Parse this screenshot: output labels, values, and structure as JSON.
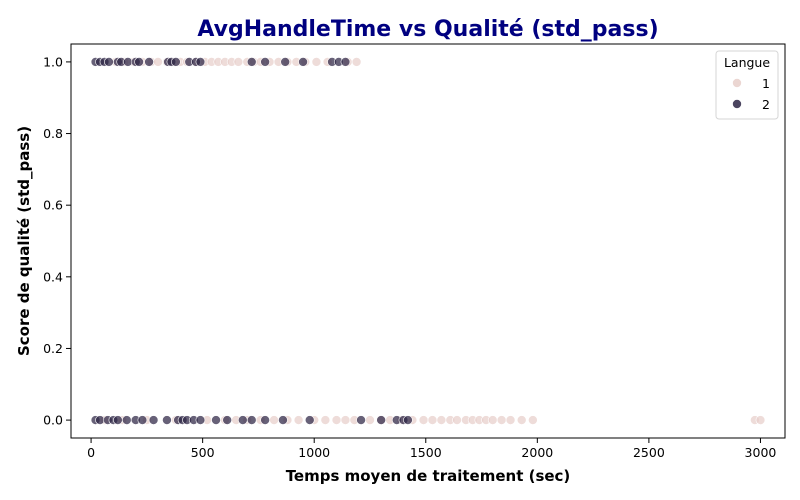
{
  "chart_data": {
    "type": "scatter",
    "title": "AvgHandleTime vs Qualité (std_pass)",
    "xlabel": "Temps moyen de traitement (sec)",
    "ylabel": "Score de qualité (std_pass)",
    "xlim": [
      -90,
      3110
    ],
    "ylim": [
      -0.05,
      1.05
    ],
    "xticks": [
      0,
      500,
      1000,
      1500,
      2000,
      2500,
      3000
    ],
    "yticks": [
      0.0,
      0.2,
      0.4,
      0.6,
      0.8,
      1.0
    ],
    "xtick_labels": [
      "0",
      "500",
      "1000",
      "1500",
      "2000",
      "2500",
      "3000"
    ],
    "ytick_labels": [
      "0.0",
      "0.2",
      "0.4",
      "0.6",
      "0.8",
      "1.0"
    ],
    "legend": {
      "title": "Langue",
      "position": "top-right",
      "entries": [
        {
          "label": "1",
          "color": "#e8cfca"
        },
        {
          "label": "2",
          "color": "#2c2444"
        }
      ]
    },
    "series": [
      {
        "name": "1",
        "color": "#e8cfca",
        "points": [
          {
            "x": 110,
            "y": 1
          },
          {
            "x": 150,
            "y": 1
          },
          {
            "x": 190,
            "y": 1
          },
          {
            "x": 230,
            "y": 1
          },
          {
            "x": 270,
            "y": 1
          },
          {
            "x": 300,
            "y": 1
          },
          {
            "x": 340,
            "y": 1
          },
          {
            "x": 370,
            "y": 1
          },
          {
            "x": 400,
            "y": 1
          },
          {
            "x": 430,
            "y": 1
          },
          {
            "x": 470,
            "y": 1
          },
          {
            "x": 510,
            "y": 1
          },
          {
            "x": 540,
            "y": 1
          },
          {
            "x": 570,
            "y": 1
          },
          {
            "x": 600,
            "y": 1
          },
          {
            "x": 630,
            "y": 1
          },
          {
            "x": 660,
            "y": 1
          },
          {
            "x": 700,
            "y": 1
          },
          {
            "x": 730,
            "y": 1
          },
          {
            "x": 760,
            "y": 1
          },
          {
            "x": 800,
            "y": 1
          },
          {
            "x": 840,
            "y": 1
          },
          {
            "x": 880,
            "y": 1
          },
          {
            "x": 920,
            "y": 1
          },
          {
            "x": 960,
            "y": 1
          },
          {
            "x": 1010,
            "y": 1
          },
          {
            "x": 1060,
            "y": 1
          },
          {
            "x": 1150,
            "y": 1
          },
          {
            "x": 1190,
            "y": 1
          },
          {
            "x": 60,
            "y": 0
          },
          {
            "x": 140,
            "y": 0
          },
          {
            "x": 250,
            "y": 0
          },
          {
            "x": 380,
            "y": 0
          },
          {
            "x": 520,
            "y": 0
          },
          {
            "x": 600,
            "y": 0
          },
          {
            "x": 650,
            "y": 0
          },
          {
            "x": 700,
            "y": 0
          },
          {
            "x": 760,
            "y": 0
          },
          {
            "x": 820,
            "y": 0
          },
          {
            "x": 880,
            "y": 0
          },
          {
            "x": 930,
            "y": 0
          },
          {
            "x": 1000,
            "y": 0
          },
          {
            "x": 1050,
            "y": 0
          },
          {
            "x": 1100,
            "y": 0
          },
          {
            "x": 1140,
            "y": 0
          },
          {
            "x": 1180,
            "y": 0
          },
          {
            "x": 1250,
            "y": 0
          },
          {
            "x": 1300,
            "y": 0
          },
          {
            "x": 1340,
            "y": 0
          },
          {
            "x": 1390,
            "y": 0
          },
          {
            "x": 1440,
            "y": 0
          },
          {
            "x": 1490,
            "y": 0
          },
          {
            "x": 1530,
            "y": 0
          },
          {
            "x": 1570,
            "y": 0
          },
          {
            "x": 1610,
            "y": 0
          },
          {
            "x": 1640,
            "y": 0
          },
          {
            "x": 1680,
            "y": 0
          },
          {
            "x": 1710,
            "y": 0
          },
          {
            "x": 1740,
            "y": 0
          },
          {
            "x": 1770,
            "y": 0
          },
          {
            "x": 1800,
            "y": 0
          },
          {
            "x": 1840,
            "y": 0
          },
          {
            "x": 1880,
            "y": 0
          },
          {
            "x": 1930,
            "y": 0
          },
          {
            "x": 1980,
            "y": 0
          },
          {
            "x": 2975,
            "y": 0
          },
          {
            "x": 3000,
            "y": 0
          }
        ]
      },
      {
        "name": "2",
        "color": "#2c2444",
        "points": [
          {
            "x": 20,
            "y": 1
          },
          {
            "x": 40,
            "y": 1
          },
          {
            "x": 60,
            "y": 1
          },
          {
            "x": 80,
            "y": 1
          },
          {
            "x": 120,
            "y": 1
          },
          {
            "x": 135,
            "y": 1
          },
          {
            "x": 165,
            "y": 1
          },
          {
            "x": 200,
            "y": 1
          },
          {
            "x": 215,
            "y": 1
          },
          {
            "x": 260,
            "y": 1
          },
          {
            "x": 345,
            "y": 1
          },
          {
            "x": 360,
            "y": 1
          },
          {
            "x": 380,
            "y": 1
          },
          {
            "x": 440,
            "y": 1
          },
          {
            "x": 470,
            "y": 1
          },
          {
            "x": 490,
            "y": 1
          },
          {
            "x": 720,
            "y": 1
          },
          {
            "x": 780,
            "y": 1
          },
          {
            "x": 870,
            "y": 1
          },
          {
            "x": 950,
            "y": 1
          },
          {
            "x": 1080,
            "y": 1
          },
          {
            "x": 1110,
            "y": 1
          },
          {
            "x": 1140,
            "y": 1
          },
          {
            "x": 20,
            "y": 0
          },
          {
            "x": 40,
            "y": 0
          },
          {
            "x": 75,
            "y": 0
          },
          {
            "x": 100,
            "y": 0
          },
          {
            "x": 120,
            "y": 0
          },
          {
            "x": 160,
            "y": 0
          },
          {
            "x": 200,
            "y": 0
          },
          {
            "x": 230,
            "y": 0
          },
          {
            "x": 280,
            "y": 0
          },
          {
            "x": 340,
            "y": 0
          },
          {
            "x": 390,
            "y": 0
          },
          {
            "x": 410,
            "y": 0
          },
          {
            "x": 430,
            "y": 0
          },
          {
            "x": 460,
            "y": 0
          },
          {
            "x": 490,
            "y": 0
          },
          {
            "x": 560,
            "y": 0
          },
          {
            "x": 610,
            "y": 0
          },
          {
            "x": 680,
            "y": 0
          },
          {
            "x": 720,
            "y": 0
          },
          {
            "x": 780,
            "y": 0
          },
          {
            "x": 860,
            "y": 0
          },
          {
            "x": 980,
            "y": 0
          },
          {
            "x": 1210,
            "y": 0
          },
          {
            "x": 1300,
            "y": 0
          },
          {
            "x": 1370,
            "y": 0
          },
          {
            "x": 1400,
            "y": 0
          },
          {
            "x": 1420,
            "y": 0
          }
        ]
      }
    ]
  }
}
